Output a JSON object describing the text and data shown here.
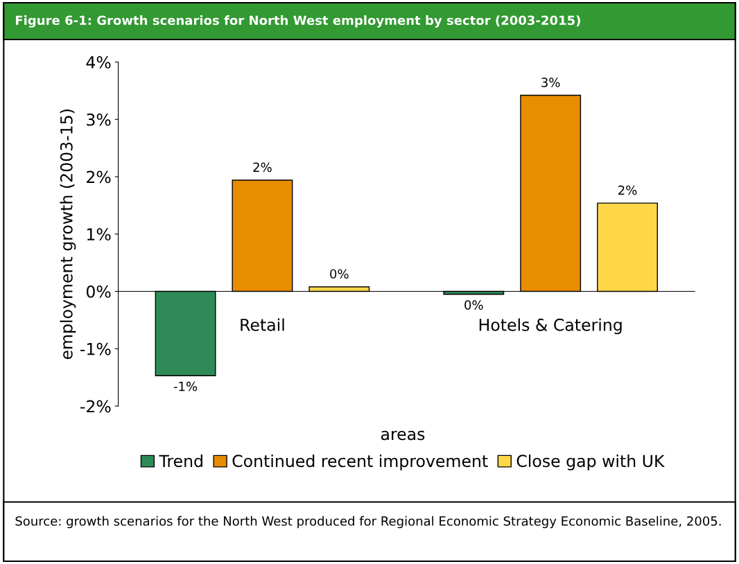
{
  "chart_data": {
    "type": "bar",
    "title": "Figure 6-1: Growth scenarios for North West employment by sector (2003-2015)",
    "xlabel": "areas",
    "ylabel": "employment growth (2003-15)",
    "categories": [
      "Retail",
      "Hotels & Catering"
    ],
    "series": [
      {
        "name": "Trend",
        "color": "#2e8b57",
        "values": [
          -1.47,
          -0.05
        ],
        "value_labels": [
          "-1%",
          "0%"
        ]
      },
      {
        "name": "Continued recent improvement",
        "color": "#e88c00",
        "values": [
          1.94,
          3.42
        ],
        "value_labels": [
          "2%",
          "3%"
        ]
      },
      {
        "name": "Close gap with UK",
        "color": "#ffd84a",
        "values": [
          0.08,
          1.54
        ],
        "value_labels": [
          "0%",
          "2%"
        ]
      }
    ],
    "ylim": [
      -2,
      4
    ],
    "yticks": [
      {
        "value": -2,
        "label": "-2%"
      },
      {
        "value": -1,
        "label": "-1%"
      },
      {
        "value": 0,
        "label": "0%"
      },
      {
        "value": 1,
        "label": "1%"
      },
      {
        "value": 2,
        "label": "2%"
      },
      {
        "value": 3,
        "label": "3%"
      },
      {
        "value": 4,
        "label": "4%"
      }
    ],
    "legend": "bottom",
    "annotations": [
      "Source: growth scenarios for the North West produced for Regional Economic Strategy Economic Baseline, 2005."
    ]
  }
}
